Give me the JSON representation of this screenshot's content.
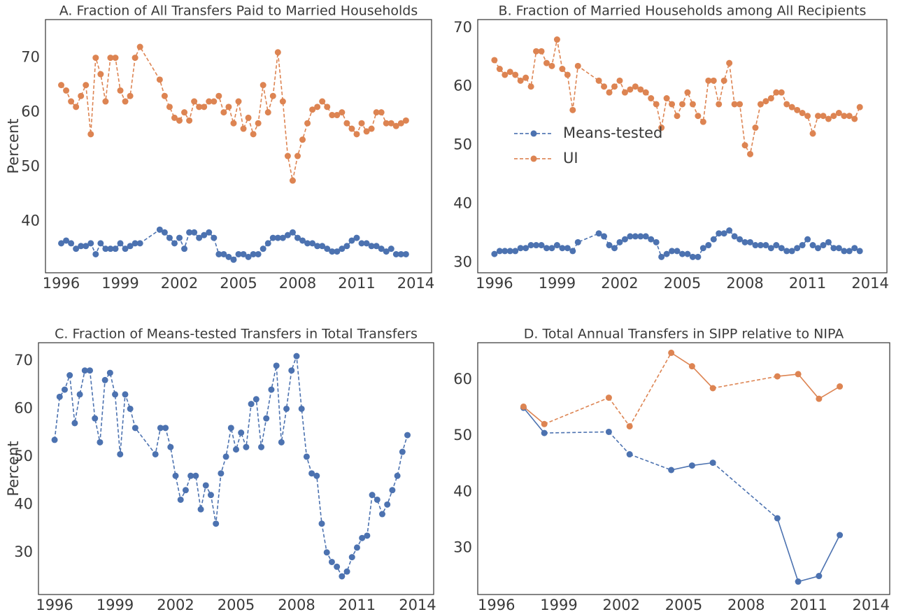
{
  "chart_data": [
    {
      "type": "line",
      "title": "A. Fraction of All Transfers Paid to Married Households",
      "ylabel": "Percent",
      "x": [
        1996,
        1996.25,
        1996.5,
        1996.75,
        1997,
        1997.25,
        1997.5,
        1997.75,
        1998,
        1998.25,
        1998.5,
        1998.75,
        1999,
        1999.25,
        1999.5,
        1999.75,
        2000,
        2001,
        2001.25,
        2001.5,
        2001.75,
        2002,
        2002.25,
        2002.5,
        2002.75,
        2003,
        2003.25,
        2003.5,
        2003.75,
        2004,
        2004.25,
        2004.5,
        2004.75,
        2005,
        2005.25,
        2005.5,
        2005.75,
        2006,
        2006.25,
        2006.5,
        2006.75,
        2007,
        2007.25,
        2007.5,
        2007.75,
        2008,
        2008.25,
        2008.5,
        2008.75,
        2009,
        2009.25,
        2009.5,
        2009.75,
        2010,
        2010.25,
        2010.5,
        2010.75,
        2011,
        2011.25,
        2011.5,
        2011.75,
        2012,
        2012.25,
        2012.5,
        2012.75,
        2013,
        2013.25,
        2013.5
      ],
      "series": [
        {
          "color": "#4c72b0",
          "values": [
            36,
            36.5,
            36,
            35,
            35.5,
            35.5,
            36,
            34,
            36,
            35,
            35,
            35,
            36,
            35,
            35.5,
            36,
            36,
            38.5,
            38,
            37,
            36,
            37,
            35,
            38,
            38,
            37,
            37.5,
            38,
            37,
            34,
            34,
            33.5,
            33,
            34,
            34,
            33.5,
            34,
            34,
            35,
            36,
            37,
            37,
            37,
            37.5,
            38,
            37,
            36.5,
            36,
            36,
            35.5,
            35.5,
            35,
            34.5,
            34.5,
            35,
            35.5,
            36.5,
            37,
            36,
            36,
            35.5,
            35.5,
            35,
            34.5,
            35,
            34,
            34,
            34
          ]
        },
        {
          "color": "#dd8452",
          "values": [
            65,
            64,
            62,
            61,
            63,
            65,
            56,
            70,
            67,
            62,
            70,
            70,
            64,
            62,
            63,
            70,
            72,
            66,
            63,
            61,
            59,
            58.5,
            60,
            58.5,
            62,
            61,
            61,
            62,
            62,
            63,
            60,
            61,
            58,
            62,
            57,
            59,
            56,
            58,
            65,
            60,
            63,
            71,
            62,
            52,
            47.5,
            52,
            55,
            58,
            60.5,
            61,
            62,
            61,
            59.5,
            59.5,
            60,
            58,
            57,
            56,
            58,
            56.5,
            57,
            60,
            60,
            58,
            58,
            57.5,
            58,
            58.5
          ]
        }
      ],
      "xlim": [
        1995.2,
        2014.8
      ],
      "xticks": [
        1996,
        1999,
        2002,
        2005,
        2008,
        2011,
        2014
      ],
      "ylim": [
        30.6,
        77.0
      ],
      "yticks": [
        40,
        50,
        60,
        70
      ]
    },
    {
      "type": "line",
      "title": "B. Fraction of Married Households among All Recipients",
      "legend": "center left",
      "x": [
        1996,
        1996.25,
        1996.5,
        1996.75,
        1997,
        1997.25,
        1997.5,
        1997.75,
        1998,
        1998.25,
        1998.5,
        1998.75,
        1999,
        1999.25,
        1999.5,
        1999.75,
        2000,
        2001,
        2001.25,
        2001.5,
        2001.75,
        2002,
        2002.25,
        2002.5,
        2002.75,
        2003,
        2003.25,
        2003.5,
        2003.75,
        2004,
        2004.25,
        2004.5,
        2004.75,
        2005,
        2005.25,
        2005.5,
        2005.75,
        2006,
        2006.25,
        2006.5,
        2006.75,
        2007,
        2007.25,
        2007.5,
        2007.75,
        2008,
        2008.25,
        2008.5,
        2008.75,
        2009,
        2009.25,
        2009.5,
        2009.75,
        2010,
        2010.25,
        2010.5,
        2010.75,
        2011,
        2011.25,
        2011.5,
        2011.75,
        2012,
        2012.25,
        2012.5,
        2012.75,
        2013,
        2013.25,
        2013.5
      ],
      "series": [
        {
          "name": "Means-tested",
          "color": "#4c72b0",
          "values": [
            31.5,
            32,
            32,
            32,
            32,
            32.5,
            32.5,
            33,
            33,
            33,
            32.5,
            32.5,
            33,
            32.5,
            32.5,
            32,
            33.5,
            35,
            34.5,
            33,
            32.5,
            33.5,
            34,
            34.5,
            34.5,
            34.5,
            34.5,
            34,
            33.5,
            31,
            31.5,
            32,
            32,
            31.5,
            31.5,
            31,
            31,
            32.5,
            33,
            34,
            35,
            35,
            35.5,
            34.5,
            34,
            33.5,
            33.5,
            33,
            33,
            33,
            32.5,
            33,
            32.5,
            32,
            32,
            32.5,
            33,
            34,
            33,
            32.5,
            33,
            33.5,
            32.5,
            32.5,
            32,
            32,
            32.5,
            32
          ]
        },
        {
          "name": "UI",
          "color": "#dd8452",
          "values": [
            64.5,
            63,
            62,
            62.5,
            62,
            61,
            61.5,
            60,
            66,
            66,
            64,
            63.5,
            68,
            63,
            62,
            56,
            63.5,
            61,
            60,
            59,
            60,
            61,
            59,
            59.5,
            60,
            59.5,
            59,
            58,
            57,
            53,
            58,
            57,
            55,
            57,
            59,
            57,
            55,
            54,
            61,
            61,
            57,
            61,
            64,
            57,
            57,
            50,
            48.5,
            53,
            57,
            57.5,
            58,
            59,
            59,
            57,
            56.5,
            56,
            55.5,
            55,
            52,
            55,
            55,
            54.5,
            55,
            55.5,
            55,
            55,
            54.5,
            56.5
          ]
        }
      ],
      "xlim": [
        1995.2,
        2014.8
      ],
      "xticks": [
        1996,
        1999,
        2002,
        2005,
        2008,
        2011,
        2014
      ],
      "ylim": [
        28.3,
        71.4
      ],
      "yticks": [
        30,
        40,
        50,
        60,
        70
      ]
    },
    {
      "type": "line",
      "title": "C. Fraction of Means-tested Transfers in Total Transfers",
      "ylabel": "Percent",
      "x": [
        1996,
        1996.25,
        1996.5,
        1996.75,
        1997,
        1997.25,
        1997.5,
        1997.75,
        1998,
        1998.25,
        1998.5,
        1998.75,
        1999,
        1999.25,
        1999.5,
        1999.75,
        2000,
        2001,
        2001.25,
        2001.5,
        2001.75,
        2002,
        2002.25,
        2002.5,
        2002.75,
        2003,
        2003.25,
        2003.5,
        2003.75,
        2004,
        2004.25,
        2004.5,
        2004.75,
        2005,
        2005.25,
        2005.5,
        2005.75,
        2006,
        2006.25,
        2006.5,
        2006.75,
        2007,
        2007.25,
        2007.5,
        2007.75,
        2008,
        2008.25,
        2008.5,
        2008.75,
        2009,
        2009.25,
        2009.5,
        2009.75,
        2010,
        2010.25,
        2010.5,
        2010.75,
        2011,
        2011.25,
        2011.5,
        2011.75,
        2012,
        2012.25,
        2012.5,
        2012.75,
        2013,
        2013.25,
        2013.5
      ],
      "series": [
        {
          "color": "#4c72b0",
          "values": [
            53.5,
            62.5,
            64,
            67,
            57,
            63,
            68,
            68,
            58,
            53,
            66,
            67.5,
            63,
            50.5,
            63,
            60,
            56,
            50.5,
            56,
            56,
            52,
            46,
            41,
            43,
            46,
            46,
            39,
            44,
            42,
            36,
            46.5,
            50,
            56,
            51.5,
            55,
            52,
            61,
            62,
            52,
            58,
            64,
            69,
            53,
            60,
            68,
            71,
            60,
            50,
            46.5,
            46,
            36,
            30,
            28,
            27,
            25,
            26,
            29,
            31,
            33,
            33.5,
            42,
            41,
            38,
            40,
            43,
            46,
            51,
            54.5
          ]
        }
      ],
      "xlim": [
        1995.2,
        2014.8
      ],
      "xticks": [
        1996,
        1999,
        2002,
        2005,
        2008,
        2011,
        2014
      ],
      "ylim": [
        21.2,
        73.8
      ],
      "yticks": [
        30,
        40,
        50,
        60,
        70
      ]
    },
    {
      "type": "line",
      "title": "D. Total Annual Transfers in SIPP relative to NIPA",
      "x": [
        1997.3,
        1998.3,
        2001.4,
        2002.4,
        2004.4,
        2005.4,
        2006.4,
        2009.5,
        2010.5,
        2011.5,
        2012.5
      ],
      "linestyles": [
        "solid",
        "dashed",
        "dashed",
        "dashed",
        "solid",
        "solid",
        "dashed",
        "solid",
        "solid",
        "solid"
      ],
      "series": [
        {
          "color": "#4c72b0",
          "values": [
            55,
            50.5,
            50.7,
            46.7,
            43.9,
            44.7,
            45.2,
            35.3,
            24,
            25,
            32.3
          ]
        },
        {
          "color": "#dd8452",
          "values": [
            55.2,
            52.1,
            56.8,
            51.7,
            64.8,
            62.4,
            58.5,
            60.6,
            61,
            56.6,
            58.8
          ]
        }
      ],
      "xlim": [
        1995.1,
        2014.9
      ],
      "xticks": [
        1996,
        1999,
        2002,
        2005,
        2008,
        2011,
        2014
      ],
      "ylim": [
        21.7,
        66.6
      ],
      "yticks": [
        30,
        40,
        50,
        60
      ]
    }
  ]
}
